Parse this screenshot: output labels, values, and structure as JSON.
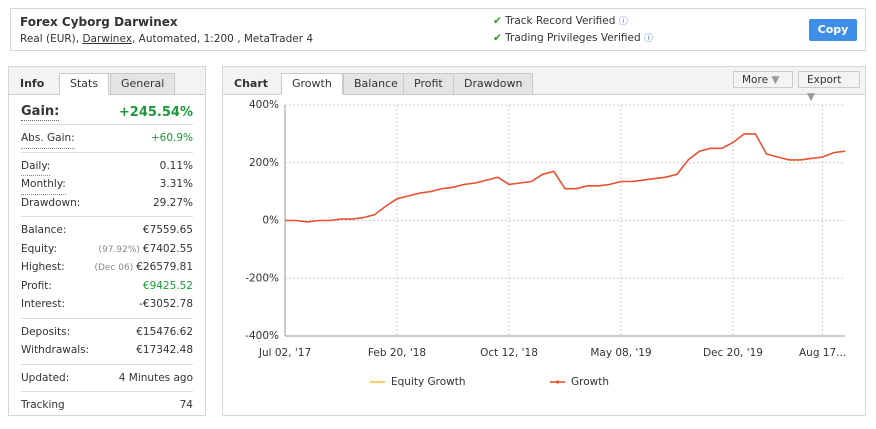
{
  "header": {
    "title": "Forex Cyborg Darwinex",
    "subtitle_prefix": "Real (EUR),",
    "broker": "Darwinex",
    "subtitle_suffix": ", Automated, 1:200 , MetaTrader 4",
    "verifications": [
      "Track Record Verified",
      "Trading Privileges Verified"
    ],
    "button": "Copy"
  },
  "stats": {
    "tabs": [
      "Info",
      "Stats",
      "General"
    ],
    "gain": {
      "label": "Gain:",
      "value": "+245.54%",
      "color": "#1a9a3a"
    },
    "groups": [
      [
        {
          "label": "Abs. Gain:",
          "value": "+60.9%",
          "color": "#1a9a3a"
        }
      ],
      [
        {
          "label": "Daily:",
          "value": "0.11%"
        },
        {
          "label": "Monthly:",
          "value": "3.31%"
        },
        {
          "label": "Drawdown:",
          "value": "29.27%"
        }
      ],
      [
        {
          "label": "Balance:",
          "value": "€7559.65"
        },
        {
          "label": "Equity:",
          "note": "(97.92%)",
          "value": "€7402.55"
        },
        {
          "label": "Highest:",
          "note": "(Dec 06)",
          "value": "€26579.81"
        },
        {
          "label": "Profit:",
          "value": "€9425.52",
          "color": "#1a9a3a"
        },
        {
          "label": "Interest:",
          "value": "-€3052.78"
        }
      ],
      [
        {
          "label": "Deposits:",
          "value": "€15476.62"
        },
        {
          "label": "Withdrawals:",
          "value": "€17342.48"
        }
      ],
      [
        {
          "label": "Updated:",
          "value": "4 Minutes ago"
        }
      ],
      [
        {
          "label": "Tracking",
          "value": "74"
        }
      ]
    ]
  },
  "panel": {
    "title": "Chart",
    "tabs": [
      "Growth",
      "Balance",
      "Profit",
      "Drawdown"
    ],
    "buttons": [
      "More",
      "Export"
    ]
  },
  "chart_data": {
    "type": "line",
    "categories": [
      "Jul 02, '17",
      null,
      null,
      null,
      null,
      null,
      null,
      null,
      null,
      null,
      "Feb 20, '18",
      null,
      null,
      null,
      null,
      null,
      null,
      null,
      null,
      null,
      "Oct 12, '18",
      null,
      null,
      null,
      null,
      null,
      null,
      null,
      null,
      null,
      "May 08, '19",
      null,
      null,
      null,
      null,
      null,
      null,
      null,
      null,
      null,
      "Dec 20, '19",
      null,
      null,
      null,
      null,
      null,
      null,
      null,
      "Aug 17...",
      null,
      null
    ],
    "series": [
      {
        "name": "Equity Growth",
        "color": "#f5c342",
        "values": [
          null,
          null,
          null,
          null,
          null,
          null,
          null,
          null,
          null,
          null,
          null,
          null,
          null,
          null,
          null,
          null,
          null,
          null,
          null,
          null,
          null,
          null,
          null,
          null,
          null,
          null,
          null,
          null,
          null,
          null,
          null,
          null,
          null,
          null,
          null,
          null,
          null,
          null,
          null,
          null,
          null,
          null,
          null,
          null,
          null,
          null,
          null,
          null,
          null,
          null,
          null
        ]
      },
      {
        "name": "Growth",
        "color": "#e8502e",
        "values": [
          0,
          0,
          -5,
          0,
          0,
          5,
          5,
          10,
          20,
          50,
          75,
          85,
          95,
          100,
          110,
          115,
          125,
          130,
          140,
          150,
          125,
          130,
          135,
          160,
          170,
          110,
          110,
          120,
          120,
          125,
          135,
          135,
          140,
          145,
          150,
          160,
          210,
          240,
          250,
          250,
          270,
          300,
          300,
          230,
          220,
          210,
          210,
          215,
          220,
          235,
          240
        ]
      }
    ],
    "ylim": [
      -400,
      400
    ],
    "yticks": [
      {
        "value": -400,
        "label": "-400%"
      },
      {
        "value": -200,
        "label": "-200%"
      },
      {
        "value": 0,
        "label": "0%"
      },
      {
        "value": 200,
        "label": "200%"
      },
      {
        "value": 400,
        "label": "400%"
      }
    ],
    "grid": true
  }
}
